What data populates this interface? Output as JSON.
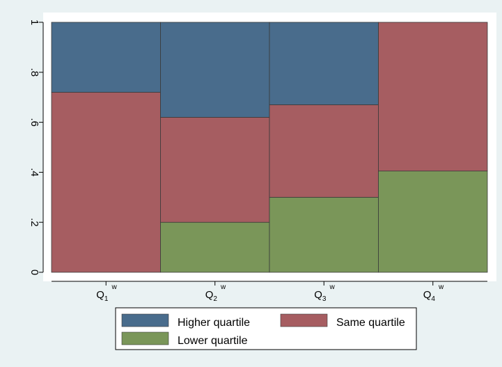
{
  "chart_data": {
    "type": "bar",
    "stacked": true,
    "categories": [
      {
        "main": "Q",
        "sub": "1",
        "sup": "w"
      },
      {
        "main": "Q",
        "sub": "2",
        "sup": "w"
      },
      {
        "main": "Q",
        "sub": "3",
        "sup": "w"
      },
      {
        "main": "Q",
        "sub": "4",
        "sup": "w"
      }
    ],
    "series": [
      {
        "name": "Lower quartile",
        "color": "#7a9659",
        "values": [
          0.0,
          0.2,
          0.3,
          0.405
        ]
      },
      {
        "name": "Same quartile",
        "color": "#a65d61",
        "values": [
          0.72,
          0.42,
          0.37,
          0.595
        ]
      },
      {
        "name": "Higher quartile",
        "color": "#496c8c",
        "values": [
          0.28,
          0.38,
          0.33,
          0.0
        ]
      }
    ],
    "ylim": [
      0,
      1
    ],
    "yticks": [
      {
        "value": 0,
        "label": "0"
      },
      {
        "value": 0.2,
        "label": ".2"
      },
      {
        "value": 0.4,
        "label": ".4"
      },
      {
        "value": 0.6,
        "label": ".6"
      },
      {
        "value": 0.8,
        "label": ".8"
      },
      {
        "value": 1,
        "label": "1"
      }
    ],
    "legend": {
      "placement": "bottom",
      "order": [
        "Higher quartile",
        "Same quartile",
        "Lower quartile"
      ]
    },
    "grid": false,
    "title": "",
    "xlabel": "",
    "ylabel": ""
  },
  "colors": {
    "background": "#eaf2f3",
    "plot_background": "#ffffff",
    "bar_outline": "#3a3a3a"
  }
}
